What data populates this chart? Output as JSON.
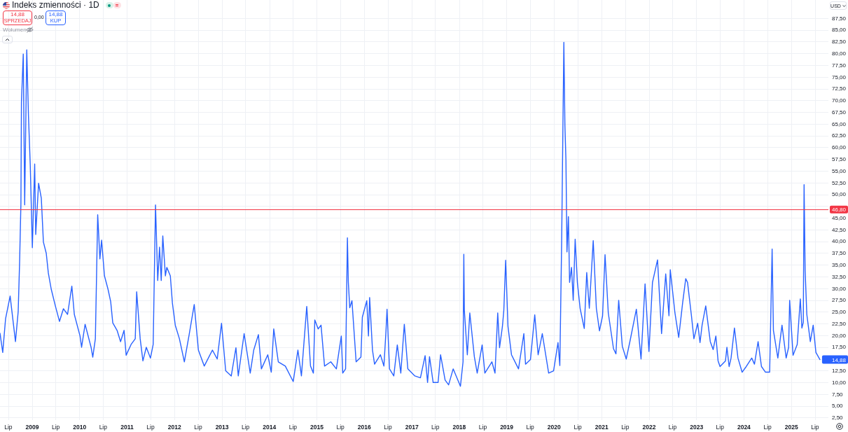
{
  "chart_data": {
    "type": "line",
    "title": "Indeks zmienności · 1D",
    "x": [
      "2008-04-28",
      "2008-05-19",
      "2008-06-10",
      "2008-07-15",
      "2008-08-25",
      "2008-09-15",
      "2008-09-26",
      "2008-10-06",
      "2008-10-10",
      "2008-10-24",
      "2008-11-04",
      "2008-11-20",
      "2008-12-03",
      "2008-12-17",
      "2009-01-02",
      "2009-01-20",
      "2009-01-28",
      "2009-02-19",
      "2009-03-12",
      "2009-03-28",
      "2009-04-19",
      "2009-05-05",
      "2009-05-27",
      "2009-06-28",
      "2009-07-30",
      "2009-08-29",
      "2009-09-30",
      "2009-11-02",
      "2009-11-21",
      "2010-01-04",
      "2010-01-16",
      "2010-02-12",
      "2010-03-30",
      "2010-04-12",
      "2010-05-02",
      "2010-05-20",
      "2010-06-06",
      "2010-06-19",
      "2010-07-11",
      "2010-08-07",
      "2010-08-28",
      "2010-09-13",
      "2010-10-16",
      "2010-11-12",
      "2010-12-09",
      "2010-12-25",
      "2011-02-01",
      "2011-03-05",
      "2011-03-16",
      "2011-04-12",
      "2011-05-03",
      "2011-05-29",
      "2011-06-30",
      "2011-07-21",
      "2011-08-08",
      "2011-08-25",
      "2011-09-08",
      "2011-09-21",
      "2011-10-03",
      "2011-10-23",
      "2011-11-03",
      "2011-11-30",
      "2011-12-16",
      "2012-01-07",
      "2012-02-08",
      "2012-03-17",
      "2012-04-23",
      "2012-06-01",
      "2012-07-03",
      "2012-08-17",
      "2012-10-19",
      "2012-11-25",
      "2012-12-28",
      "2013-01-29",
      "2013-03-13",
      "2013-04-18",
      "2013-05-06",
      "2013-06-20",
      "2013-08-06",
      "2013-09-02",
      "2013-10-08",
      "2013-10-31",
      "2013-12-19",
      "2014-01-15",
      "2014-02-03",
      "2014-03-10",
      "2014-05-03",
      "2014-07-03",
      "2014-08-08",
      "2014-09-04",
      "2014-10-15",
      "2014-11-13",
      "2014-12-05",
      "2014-12-16",
      "2015-01-11",
      "2015-02-02",
      "2015-03-01",
      "2015-04-18",
      "2015-05-31",
      "2015-07-08",
      "2015-07-19",
      "2015-08-10",
      "2015-08-24",
      "2015-08-31",
      "2015-09-11",
      "2015-09-28",
      "2015-10-30",
      "2015-12-06",
      "2015-12-17",
      "2016-01-20",
      "2016-02-02",
      "2016-02-11",
      "2016-03-04",
      "2016-03-20",
      "2016-05-04",
      "2016-05-31",
      "2016-06-16",
      "2016-06-24",
      "2016-07-13",
      "2016-08-15",
      "2016-09-11",
      "2016-10-08",
      "2016-11-04",
      "2016-12-01",
      "2017-01-24",
      "2017-03-08",
      "2017-04-13",
      "2017-05-02",
      "2017-05-17",
      "2017-06-14",
      "2017-07-22",
      "2017-08-10",
      "2017-09-14",
      "2017-10-11",
      "2017-11-15",
      "2018-01-10",
      "2018-01-30",
      "2018-02-05",
      "2018-02-09",
      "2018-03-04",
      "2018-03-23",
      "2018-04-27",
      "2018-05-19",
      "2018-06-26",
      "2018-07-17",
      "2018-09-09",
      "2018-10-03",
      "2018-10-24",
      "2018-11-07",
      "2018-11-29",
      "2018-12-10",
      "2018-12-24",
      "2019-01-11",
      "2019-02-07",
      "2019-04-02",
      "2019-05-13",
      "2019-05-26",
      "2019-07-03",
      "2019-08-05",
      "2019-08-31",
      "2019-10-02",
      "2019-11-20",
      "2019-12-28",
      "2020-01-31",
      "2020-02-14",
      "2020-02-28",
      "2020-03-16",
      "2020-03-24",
      "2020-04-01",
      "2020-04-09",
      "2020-04-20",
      "2020-04-29",
      "2020-05-14",
      "2020-05-27",
      "2020-06-11",
      "2020-06-28",
      "2020-07-19",
      "2020-08-20",
      "2020-09-08",
      "2020-09-28",
      "2020-10-28",
      "2020-11-21",
      "2020-12-15",
      "2021-01-08",
      "2021-01-27",
      "2021-02-21",
      "2021-04-02",
      "2021-04-21",
      "2021-05-12",
      "2021-06-09",
      "2021-07-09",
      "2021-08-07",
      "2021-09-25",
      "2021-10-31",
      "2021-12-01",
      "2021-12-31",
      "2022-01-27",
      "2022-03-07",
      "2022-04-07",
      "2022-05-09",
      "2022-06-03",
      "2022-06-13",
      "2022-07-19",
      "2022-08-17",
      "2022-09-16",
      "2022-10-10",
      "2022-10-24",
      "2022-11-23",
      "2022-12-12",
      "2023-01-10",
      "2023-01-28",
      "2023-02-13",
      "2023-03-13",
      "2023-04-17",
      "2023-05-09",
      "2023-05-30",
      "2023-06-16",
      "2023-07-01",
      "2023-08-12",
      "2023-08-23",
      "2023-09-09",
      "2023-09-24",
      "2023-10-20",
      "2023-11-16",
      "2023-12-18",
      "2024-01-19",
      "2024-03-01",
      "2024-03-22",
      "2024-04-19",
      "2024-05-15",
      "2024-06-15",
      "2024-07-17",
      "2024-08-05",
      "2024-08-15",
      "2024-09-18",
      "2024-10-20",
      "2024-11-21",
      "2024-12-10",
      "2024-12-18",
      "2025-01-13",
      "2025-02-14",
      "2025-03-10",
      "2025-03-22",
      "2025-04-02",
      "2025-04-08",
      "2025-04-16",
      "2025-04-29",
      "2025-05-26",
      "2025-06-17",
      "2025-07-08",
      "2025-08-08"
    ],
    "values": [
      20.5,
      16.4,
      23.6,
      28.4,
      18.7,
      25.1,
      35.7,
      48.1,
      69.6,
      79.9,
      47.8,
      80.8,
      66.8,
      56.2,
      38.7,
      56.5,
      41.5,
      52.4,
      49.2,
      39.9,
      37.5,
      33.3,
      29.9,
      26.3,
      23.0,
      25.7,
      24.5,
      30.5,
      24.5,
      19.9,
      17.5,
      22.4,
      17.5,
      15.4,
      19.3,
      45.7,
      36.3,
      40.3,
      32.7,
      29.9,
      27.2,
      22.7,
      21.1,
      18.7,
      21.1,
      15.8,
      18.1,
      19.3,
      29.3,
      19.3,
      14.6,
      17.5,
      15.2,
      18.1,
      47.8,
      31.7,
      38.8,
      31.7,
      41.2,
      32.7,
      34.5,
      32.7,
      26.9,
      22.2,
      19.3,
      14.4,
      20.2,
      26.6,
      16.9,
      13.5,
      16.9,
      15.0,
      22.6,
      12.5,
      11.4,
      17.4,
      11.4,
      20.4,
      12.0,
      16.9,
      20.2,
      12.9,
      15.9,
      12.2,
      21.4,
      14.4,
      13.5,
      10.2,
      16.9,
      11.4,
      26.2,
      13.5,
      12.0,
      23.3,
      21.4,
      22.2,
      13.5,
      14.4,
      12.9,
      19.9,
      12.0,
      12.9,
      40.8,
      31.4,
      25.9,
      27.4,
      14.4,
      15.4,
      23.9,
      27.4,
      19.9,
      28.1,
      16.9,
      13.9,
      15.9,
      13.5,
      21.0,
      25.6,
      12.9,
      11.4,
      18.0,
      12.0,
      22.4,
      12.9,
      11.4,
      11.0,
      15.7,
      10.0,
      15.5,
      10.0,
      10.0,
      15.9,
      10.5,
      9.5,
      12.9,
      9.2,
      14.4,
      37.3,
      25.4,
      15.9,
      24.8,
      15.5,
      12.0,
      18.0,
      12.0,
      14.4,
      12.0,
      24.8,
      17.4,
      21.9,
      25.4,
      36.0,
      21.9,
      15.9,
      12.9,
      20.4,
      13.9,
      14.9,
      24.4,
      15.9,
      20.4,
      12.0,
      12.5,
      18.5,
      13.6,
      39.9,
      82.4,
      64.8,
      57.3,
      37.8,
      45.3,
      31.3,
      34.5,
      27.5,
      40.5,
      31.3,
      25.8,
      21.5,
      33.4,
      25.8,
      40.2,
      25.8,
      21.0,
      24.2,
      37.2,
      24.8,
      17.2,
      16.1,
      27.5,
      17.7,
      15.0,
      18.8,
      25.6,
      15.0,
      31.0,
      16.6,
      31.3,
      36.1,
      20.4,
      33.1,
      24.2,
      34.0,
      24.8,
      19.6,
      26.9,
      32.1,
      31.3,
      24.2,
      19.3,
      22.6,
      18.5,
      22.2,
      26.3,
      18.7,
      17.0,
      19.9,
      14.6,
      13.4,
      14.6,
      17.5,
      13.4,
      15.2,
      21.6,
      15.2,
      12.2,
      13.4,
      15.2,
      13.9,
      18.7,
      13.4,
      12.2,
      12.2,
      38.4,
      21.1,
      15.2,
      22.2,
      15.2,
      17.5,
      27.5,
      15.8,
      18.1,
      27.8,
      21.6,
      22.8,
      52.1,
      33.9,
      24.5,
      18.7,
      22.2,
      16.4,
      14.88
    ],
    "color": "#2962ff",
    "xlim": [
      "2008-04-28",
      "2025-10-12"
    ],
    "xticks": [
      {
        "value": "2008-07-01",
        "label": "Lip"
      },
      {
        "value": "2009-01-01",
        "label": "2009"
      },
      {
        "value": "2009-07-01",
        "label": "Lip"
      },
      {
        "value": "2010-01-01",
        "label": "2010"
      },
      {
        "value": "2010-07-01",
        "label": "Lip"
      },
      {
        "value": "2011-01-01",
        "label": "2011"
      },
      {
        "value": "2011-07-01",
        "label": "Lip"
      },
      {
        "value": "2012-01-01",
        "label": "2012"
      },
      {
        "value": "2012-07-01",
        "label": "Lip"
      },
      {
        "value": "2013-01-01",
        "label": "2013"
      },
      {
        "value": "2013-07-01",
        "label": "Lip"
      },
      {
        "value": "2014-01-01",
        "label": "2014"
      },
      {
        "value": "2014-07-01",
        "label": "Lip"
      },
      {
        "value": "2015-01-01",
        "label": "2015"
      },
      {
        "value": "2015-07-01",
        "label": "Lip"
      },
      {
        "value": "2016-01-01",
        "label": "2016"
      },
      {
        "value": "2016-07-01",
        "label": "Lip"
      },
      {
        "value": "2017-01-01",
        "label": "2017"
      },
      {
        "value": "2017-07-01",
        "label": "Lip"
      },
      {
        "value": "2018-01-01",
        "label": "2018"
      },
      {
        "value": "2018-07-01",
        "label": "Lip"
      },
      {
        "value": "2019-01-01",
        "label": "2019"
      },
      {
        "value": "2019-07-01",
        "label": "Lip"
      },
      {
        "value": "2020-01-01",
        "label": "2020"
      },
      {
        "value": "2020-07-01",
        "label": "Lip"
      },
      {
        "value": "2021-01-01",
        "label": "2021"
      },
      {
        "value": "2021-07-01",
        "label": "Lip"
      },
      {
        "value": "2022-01-01",
        "label": "2022"
      },
      {
        "value": "2022-07-01",
        "label": "Lip"
      },
      {
        "value": "2023-01-01",
        "label": "2023"
      },
      {
        "value": "2023-07-01",
        "label": "Lip"
      },
      {
        "value": "2024-01-01",
        "label": "2024"
      },
      {
        "value": "2024-07-01",
        "label": "Lip"
      },
      {
        "value": "2025-01-01",
        "label": "2025"
      },
      {
        "value": "2025-07-01",
        "label": "Lip"
      }
    ],
    "ylim": [
      2,
      91.4
    ],
    "yticks": [
      {
        "value": 2.5,
        "label": "2,50"
      },
      {
        "value": 5,
        "label": "5,00"
      },
      {
        "value": 7.5,
        "label": "7,50"
      },
      {
        "value": 10,
        "label": "10,00"
      },
      {
        "value": 12.5,
        "label": "12,50"
      },
      {
        "value": 15,
        "label": null
      },
      {
        "value": 17.5,
        "label": "17,50"
      },
      {
        "value": 20,
        "label": "20,00"
      },
      {
        "value": 22.5,
        "label": "22,50"
      },
      {
        "value": 25,
        "label": "25,00"
      },
      {
        "value": 27.5,
        "label": "27,50"
      },
      {
        "value": 30,
        "label": "30,00"
      },
      {
        "value": 32.5,
        "label": "32,50"
      },
      {
        "value": 35,
        "label": "35,00"
      },
      {
        "value": 37.5,
        "label": "37,50"
      },
      {
        "value": 40,
        "label": "40,00"
      },
      {
        "value": 42.5,
        "label": "42,50"
      },
      {
        "value": 45,
        "label": "45,00"
      },
      {
        "value": 47.5,
        "label": null
      },
      {
        "value": 50,
        "label": "50,00"
      },
      {
        "value": 52.5,
        "label": "52,50"
      },
      {
        "value": 55,
        "label": "55,00"
      },
      {
        "value": 57.5,
        "label": "57,50"
      },
      {
        "value": 60,
        "label": "60,00"
      },
      {
        "value": 62.5,
        "label": "62,50"
      },
      {
        "value": 65,
        "label": "65,00"
      },
      {
        "value": 67.5,
        "label": "67,50"
      },
      {
        "value": 70,
        "label": "70,00"
      },
      {
        "value": 72.5,
        "label": "72,50"
      },
      {
        "value": 75,
        "label": "75,00"
      },
      {
        "value": 77.5,
        "label": "77,50"
      },
      {
        "value": 80,
        "label": "80,00"
      },
      {
        "value": 82.5,
        "label": "82,50"
      },
      {
        "value": 85,
        "label": "85,00"
      },
      {
        "value": 87.5,
        "label": "87,50"
      }
    ],
    "grid": true,
    "ref_lines": [
      {
        "axis": "y",
        "value": 46.8,
        "label": "46,80",
        "color": "#f23645"
      }
    ],
    "annotations": [
      "14,88",
      "SPRZEDAJ",
      "0,00",
      "14,88",
      "KUP",
      "Wolumen",
      "USD",
      {
        "text": "14,88",
        "x": "2025-08-08",
        "y": 14.88
      }
    ]
  }
}
